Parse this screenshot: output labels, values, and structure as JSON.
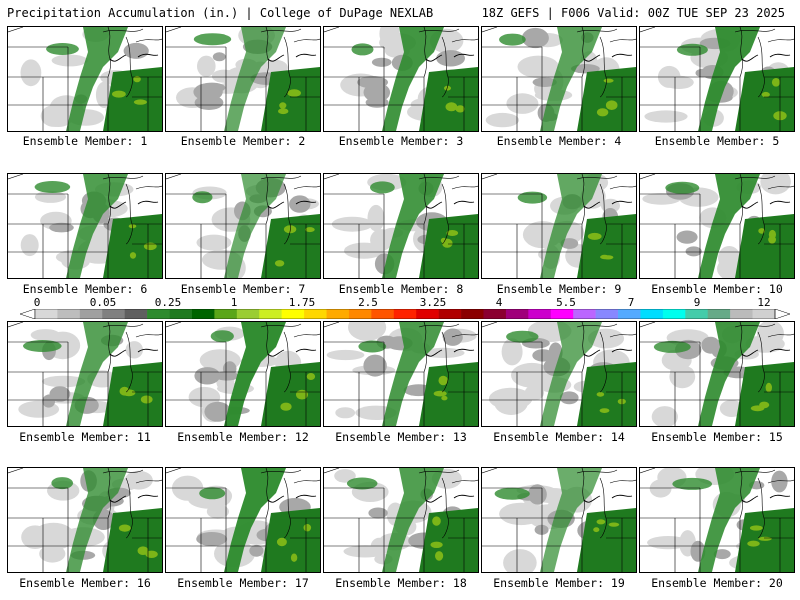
{
  "header": {
    "left_title": "Precipitation Accumulation (in.) | College of DuPage NEXLAB",
    "right_title": "18Z GEFS | F006 Valid: 00Z TUE SEP 23 2025"
  },
  "members": [
    {
      "label": "Ensemble Member: 1"
    },
    {
      "label": "Ensemble Member: 2"
    },
    {
      "label": "Ensemble Member: 3"
    },
    {
      "label": "Ensemble Member: 4"
    },
    {
      "label": "Ensemble Member: 5"
    },
    {
      "label": "Ensemble Member: 6"
    },
    {
      "label": "Ensemble Member: 7"
    },
    {
      "label": "Ensemble Member: 8"
    },
    {
      "label": "Ensemble Member: 9"
    },
    {
      "label": "Ensemble Member: 10"
    },
    {
      "label": "Ensemble Member: 11"
    },
    {
      "label": "Ensemble Member: 12"
    },
    {
      "label": "Ensemble Member: 13"
    },
    {
      "label": "Ensemble Member: 14"
    },
    {
      "label": "Ensemble Member: 15"
    },
    {
      "label": "Ensemble Member: 16"
    },
    {
      "label": "Ensemble Member: 17"
    },
    {
      "label": "Ensemble Member: 18"
    },
    {
      "label": "Ensemble Member: 19"
    },
    {
      "label": "Ensemble Member: 20"
    }
  ],
  "colorbar": {
    "labels": [
      "0",
      "0.05",
      "0.25",
      "1",
      "1.75",
      "2.5",
      "3.25",
      "4",
      "5.5",
      "7",
      "9",
      "12"
    ],
    "colors": [
      "#d8d8d8",
      "#bdbdbd",
      "#a0a0a0",
      "#808080",
      "#5f5f5f",
      "#2e8b2e",
      "#1f7a1f",
      "#006400",
      "#5aa618",
      "#9acd32",
      "#ccee22",
      "#ffff00",
      "#ffd700",
      "#ffaa00",
      "#ff8800",
      "#ff5500",
      "#ff2200",
      "#e00000",
      "#b00000",
      "#8b0000",
      "#8b0030",
      "#a0007a",
      "#cc00cc",
      "#ff00ff",
      "#bb66ff",
      "#8888ff",
      "#55aaff",
      "#00ddff",
      "#00ffee",
      "#44ccaa",
      "#66aa88",
      "#bbbbbb",
      "#d0d0d0"
    ]
  }
}
